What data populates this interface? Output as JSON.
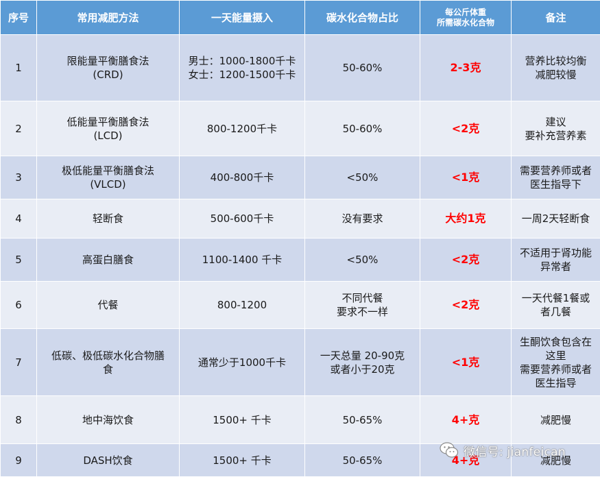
{
  "headers": [
    "序号",
    "常用减肥方法",
    "一天能量摄入",
    "碳水化合物占比",
    "每公斤体重\n所需碳水化合物",
    "备注"
  ],
  "rows": [
    {
      "no": "1",
      "method": "限能量平衡膳食法\n(CRD)",
      "energy": "男士：1000-1800千卡\n女士：1200-1500千卡",
      "carb_ratio": "50-60%",
      "carb_per_kg": "2-3克",
      "note": "营养比较均衡\n减肥较慢"
    },
    {
      "no": "2",
      "method": "低能量平衡膳食法\n(LCD)",
      "energy": "800-1200千卡",
      "carb_ratio": "50-60%",
      "carb_per_kg": "<2克",
      "note": "建议\n要补充营养素"
    },
    {
      "no": "3",
      "method": "极低能量平衡膳食法\n(VLCD)",
      "energy": "400-800千卡",
      "carb_ratio": "<50%",
      "carb_per_kg": "<1克",
      "note": "需要营养师或者\n医生指导下"
    },
    {
      "no": "4",
      "method": "轻断食",
      "energy": "500-600千卡",
      "carb_ratio": "没有要求",
      "carb_per_kg": "大约1克",
      "note": "一周2天轻断食"
    },
    {
      "no": "5",
      "method": "高蛋白膳食",
      "energy": "1100-1400 千卡",
      "carb_ratio": "<50%",
      "carb_per_kg": "<2克",
      "note": "不适用于肾功能\n异常者"
    },
    {
      "no": "6",
      "method": "代餐",
      "energy": "800-1200",
      "carb_ratio": "不同代餐\n要求不一样",
      "carb_per_kg": "<2克",
      "note": "一天代餐1餐或\n者几餐"
    },
    {
      "no": "7",
      "method": "低碳、极低碳水化合物膳\n食",
      "energy": "通常少于1000千卡",
      "carb_ratio": "一天总量 20-90克\n或者小于20克",
      "carb_per_kg": "<1克",
      "note": "生酮饮食包含在\n这里\n需要营养师或者\n医生指导"
    },
    {
      "no": "8",
      "method": "地中海饮食",
      "energy": "1500+ 千卡",
      "carb_ratio": "50-65%",
      "carb_per_kg": "4+克",
      "note": "减肥慢"
    },
    {
      "no": "9",
      "method": "DASH饮食",
      "energy": "1500+ 千卡",
      "carb_ratio": "50-65%",
      "carb_per_kg": "4+克",
      "note": "减肥慢"
    }
  ],
  "watermark": {
    "text": "微信号: jianfeican",
    "icon": "wechat-icon"
  },
  "colors": {
    "header_bg": "#5b9bd5",
    "row_dark": "#cfd8ec",
    "row_light": "#e9edf5",
    "highlight": "#ff0000"
  }
}
